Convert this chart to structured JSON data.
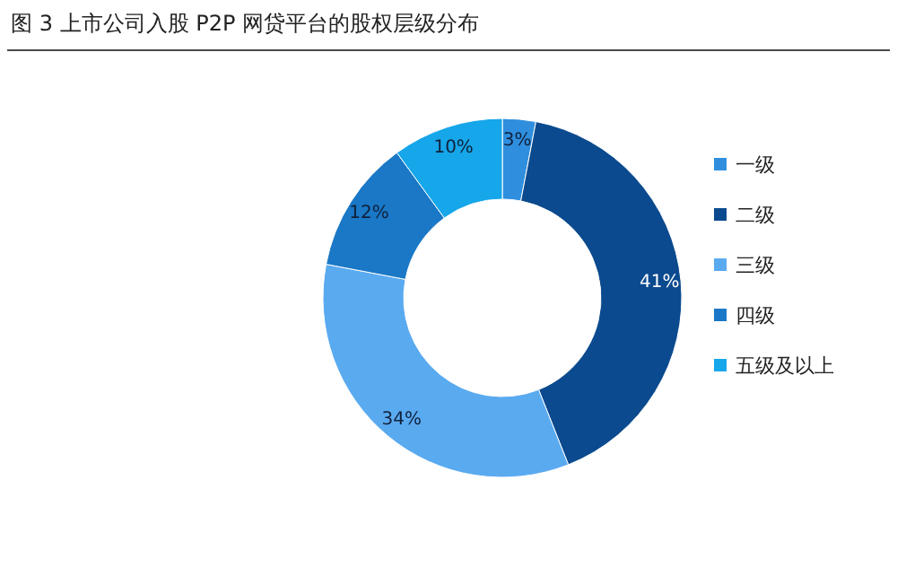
{
  "chart_data": {
    "type": "donut",
    "title": "图 3 上市公司入股 P2P 网贷平台的股权层级分布",
    "categories": [
      "一级",
      "二级",
      "三级",
      "四级",
      "五级及以上"
    ],
    "values": [
      3,
      41,
      34,
      12,
      10
    ],
    "colors": [
      "#2f8fde",
      "#0b4a8e",
      "#5aaaf0",
      "#1a78c6",
      "#16a6ea"
    ],
    "value_labels": [
      "3%",
      "41%",
      "34%",
      "12%",
      "10%"
    ],
    "legend": "right"
  }
}
